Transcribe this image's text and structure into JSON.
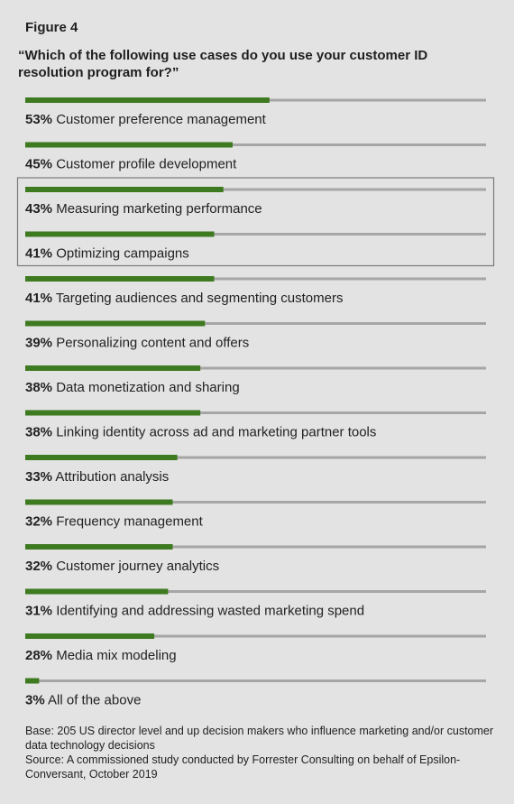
{
  "figure_label": "Figure 4",
  "question": "“Which of the following use cases do you use your customer ID resolution program for?”",
  "notes": {
    "base": "Base: 205 US director level and up decision makers who influence marketing and/or customer data technology decisions",
    "source": "Source: A commissioned study conducted by Forrester Consulting on behalf of Epsilon-Conversant, October 2019"
  },
  "colors": {
    "bar": "#3e7a1f",
    "track": "#a6a6a6",
    "box": "#7a7a7a",
    "background": "#e3e3e3"
  },
  "chart_data": {
    "type": "bar",
    "orientation": "horizontal",
    "xlim": [
      0,
      100
    ],
    "highlighted": [
      "Measuring marketing performance",
      "Optimizing campaigns"
    ],
    "items": [
      {
        "label": "Customer preference management",
        "pct": "53%",
        "value": 53
      },
      {
        "label": "Customer profile development",
        "pct": "45%",
        "value": 45
      },
      {
        "label": "Measuring marketing performance",
        "pct": "43%",
        "value": 43
      },
      {
        "label": "Optimizing campaigns",
        "pct": "41%",
        "value": 41
      },
      {
        "label": "Targeting audiences and segmenting customers",
        "pct": "41%",
        "value": 41
      },
      {
        "label": "Personalizing content and offers",
        "pct": "39%",
        "value": 39
      },
      {
        "label": "Data monetization and sharing",
        "pct": "38%",
        "value": 38
      },
      {
        "label": "Linking identity across ad and marketing partner tools",
        "pct": "38%",
        "value": 38
      },
      {
        "label": "Attribution analysis",
        "pct": "33%",
        "value": 33
      },
      {
        "label": "Frequency management",
        "pct": "32%",
        "value": 32
      },
      {
        "label": "Customer journey analytics",
        "pct": "32%",
        "value": 32
      },
      {
        "label": "Identifying and addressing wasted marketing spend",
        "pct": "31%",
        "value": 31
      },
      {
        "label": "Media mix modeling",
        "pct": "28%",
        "value": 28
      },
      {
        "label": "All of the above",
        "pct": "3%",
        "value": 3
      }
    ]
  }
}
